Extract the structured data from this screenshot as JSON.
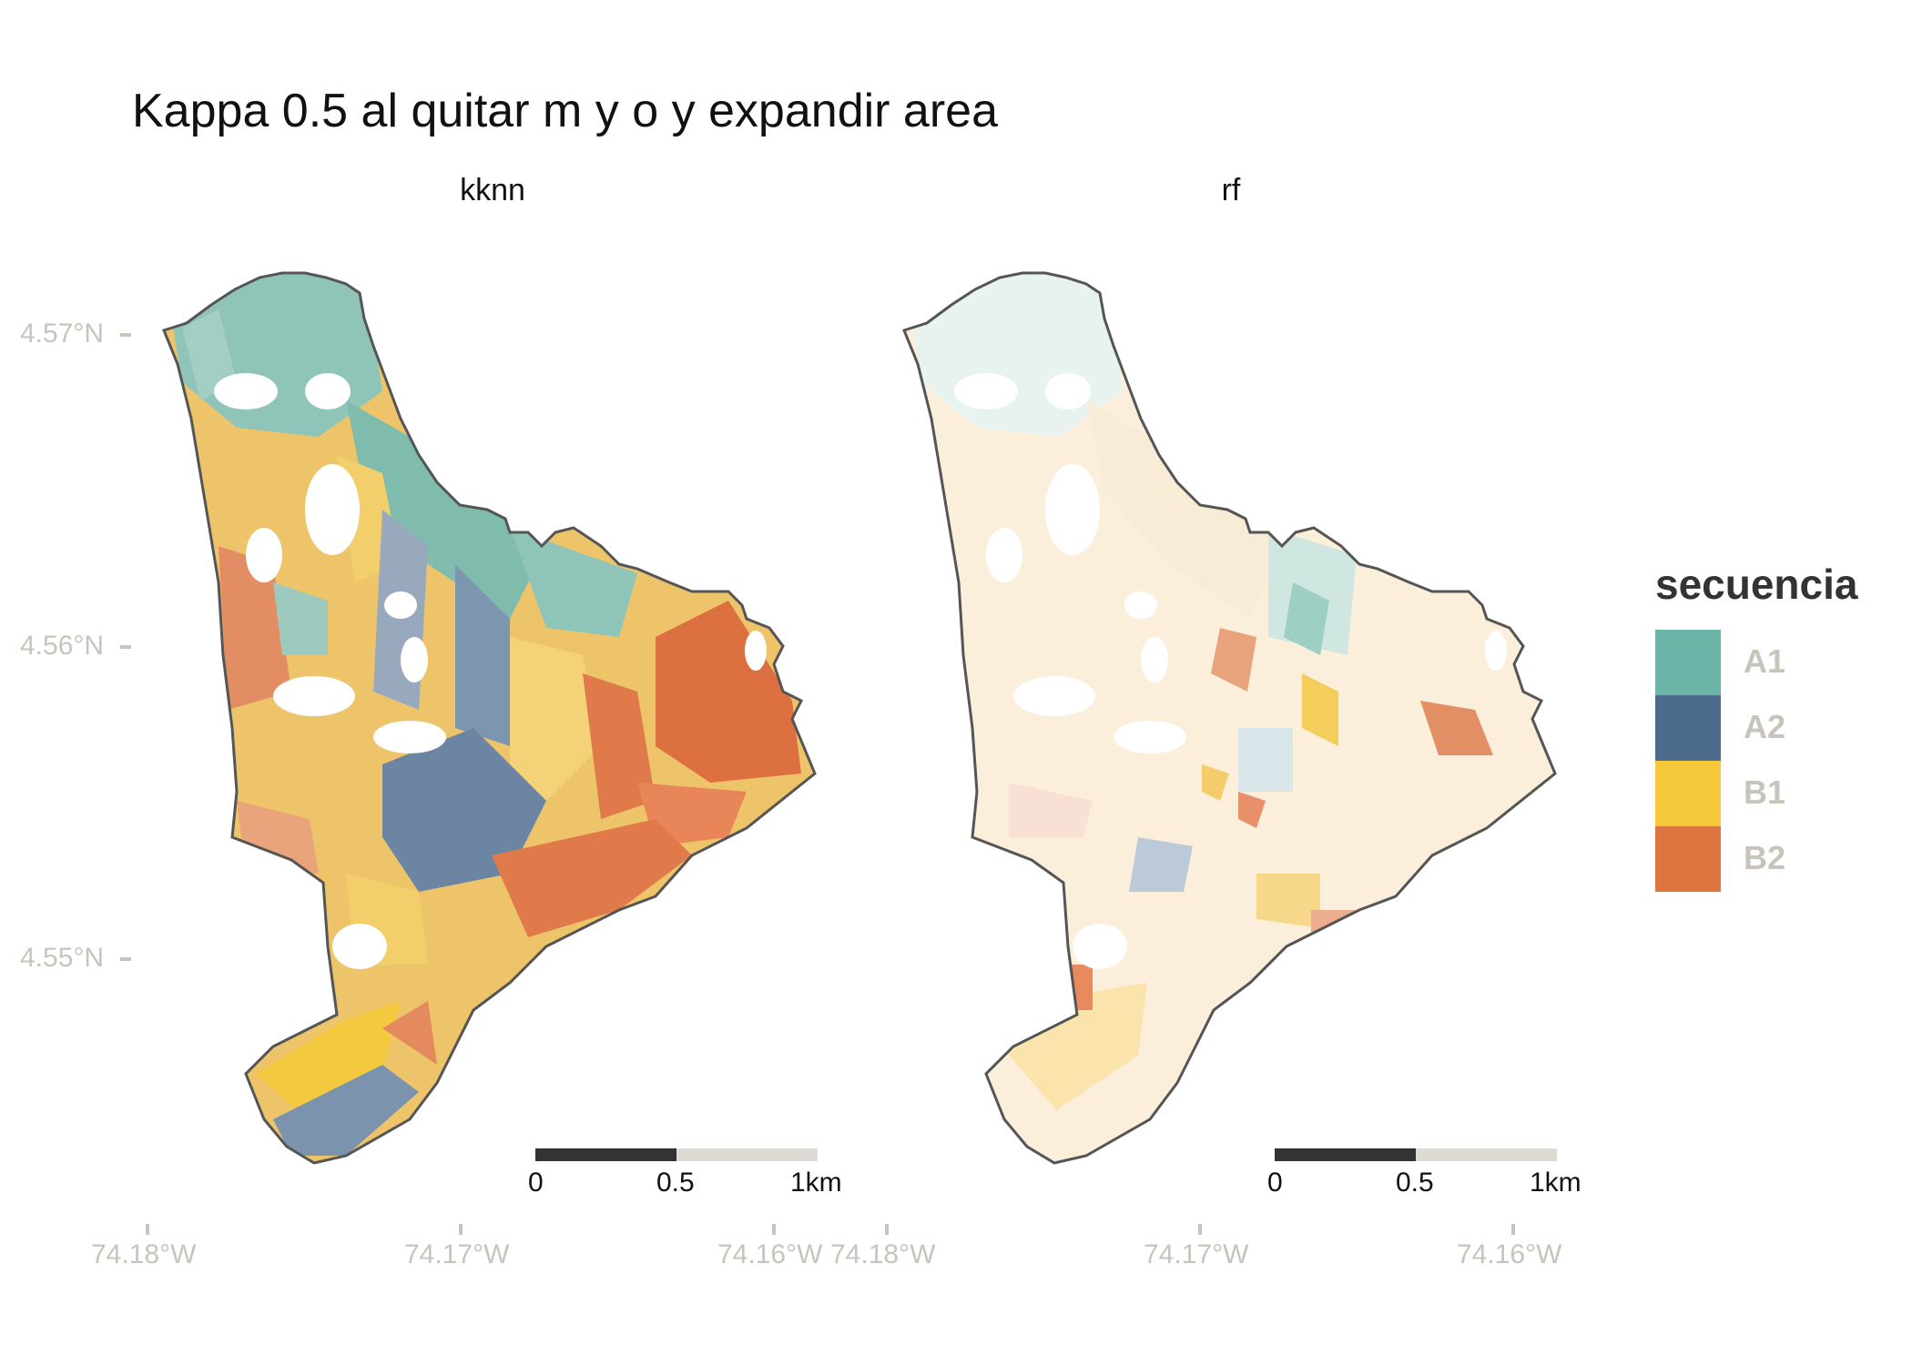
{
  "title": "Kappa 0.5 al quitar m y o y expandir area",
  "panels": [
    {
      "label": "kknn"
    },
    {
      "label": "rf"
    }
  ],
  "y_axis_ticks": [
    "4.57°N",
    "4.56°N",
    "4.55°N"
  ],
  "x_axis_ticks": [
    "74.18°W",
    "74.17°W",
    "74.16°W"
  ],
  "scale_bar": {
    "labels": [
      "0",
      "0.5",
      "1km"
    ]
  },
  "legend": {
    "title": "secuencia",
    "items": [
      {
        "label": "A1",
        "color": "#6bb5a8"
      },
      {
        "label": "A2",
        "color": "#4d6b8c"
      },
      {
        "label": "B1",
        "color": "#f5c93a"
      },
      {
        "label": "B2",
        "color": "#de7440"
      }
    ]
  }
}
